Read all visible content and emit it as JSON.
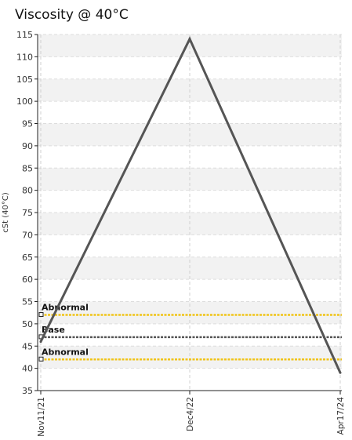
{
  "chart_data": {
    "type": "line",
    "title": "Viscosity @ 40°C",
    "ylabel": "cSt (40°C)",
    "xlabel": "",
    "categories": [
      "Nov11/21",
      "Dec4/22",
      "Apr17/24"
    ],
    "ylim": [
      35,
      115
    ],
    "yticks": [
      35,
      40,
      45,
      50,
      55,
      60,
      65,
      70,
      75,
      80,
      85,
      90,
      95,
      100,
      105,
      110,
      115
    ],
    "grid": true,
    "series": [
      {
        "values": [
          46,
          114,
          39
        ],
        "color": "#555555"
      }
    ],
    "reference_lines": [
      {
        "label": "Abnormal",
        "value": 52,
        "color": "#f0c419"
      },
      {
        "label": "Base",
        "value": 47,
        "color": "#555555"
      },
      {
        "label": "Abnormal",
        "value": 42,
        "color": "#f0c419"
      }
    ]
  }
}
